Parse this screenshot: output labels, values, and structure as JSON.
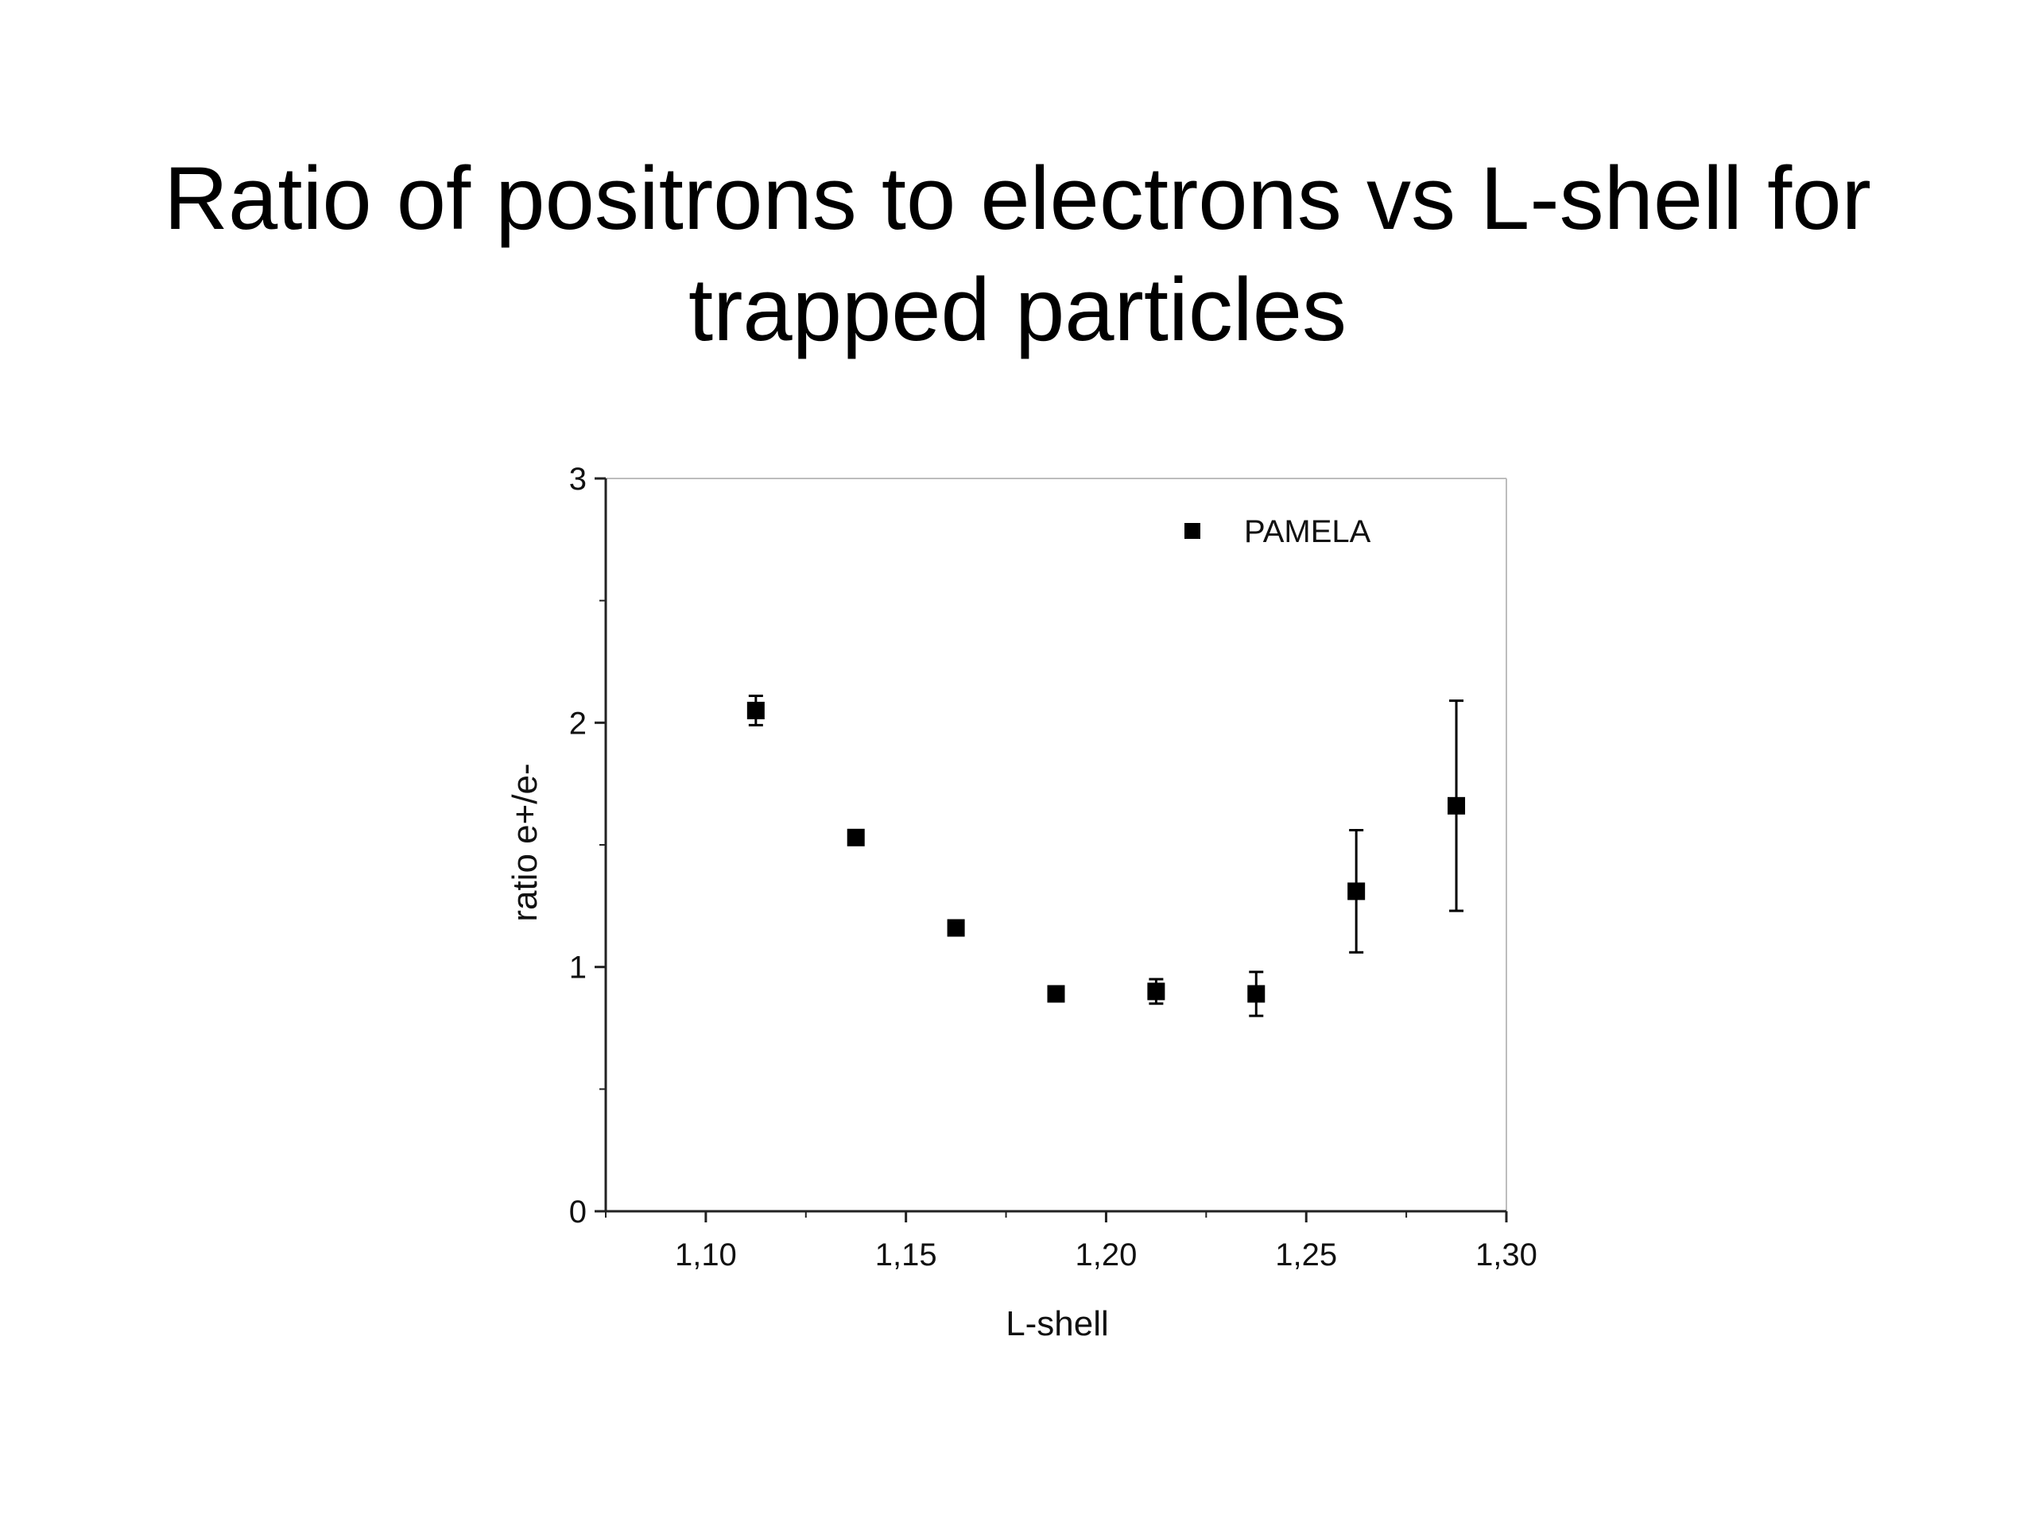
{
  "slide": {
    "title_line1": "Ratio of positrons to electrons vs L-shell for",
    "title_line2": "trapped particles"
  },
  "chart_data": {
    "type": "scatter",
    "xlabel": "L-shell",
    "ylabel": "ratio e+/e-",
    "xlim": [
      1.075,
      1.3
    ],
    "ylim": [
      0,
      3
    ],
    "x_ticks": [
      {
        "value": 1.1,
        "label": "1,10"
      },
      {
        "value": 1.15,
        "label": "1,15"
      },
      {
        "value": 1.2,
        "label": "1,20"
      },
      {
        "value": 1.25,
        "label": "1,25"
      },
      {
        "value": 1.3,
        "label": "1,30"
      }
    ],
    "x_minor_ticks": [
      1.125,
      1.175,
      1.225,
      1.275
    ],
    "y_ticks": [
      {
        "value": 0,
        "label": "0"
      },
      {
        "value": 1,
        "label": "1"
      },
      {
        "value": 2,
        "label": "2"
      },
      {
        "value": 3,
        "label": "3"
      }
    ],
    "y_minor_ticks": [
      0.5,
      1.5,
      2.5
    ],
    "grid": false,
    "legend": {
      "position": "top-right",
      "entries": [
        "PAMELA"
      ]
    },
    "marker": "square",
    "series": [
      {
        "name": "PAMELA",
        "color": "#000000",
        "points": [
          {
            "x": 1.1125,
            "y": 2.05,
            "err_low": 0.06,
            "err_high": 0.06
          },
          {
            "x": 1.1375,
            "y": 1.53,
            "err_low": 0.03,
            "err_high": 0.03
          },
          {
            "x": 1.1625,
            "y": 1.16,
            "err_low": 0.03,
            "err_high": 0.03
          },
          {
            "x": 1.1875,
            "y": 0.89,
            "err_low": 0.03,
            "err_high": 0.03
          },
          {
            "x": 1.2125,
            "y": 0.9,
            "err_low": 0.05,
            "err_high": 0.05
          },
          {
            "x": 1.2375,
            "y": 0.89,
            "err_low": 0.09,
            "err_high": 0.09
          },
          {
            "x": 1.2625,
            "y": 1.31,
            "err_low": 0.25,
            "err_high": 0.25
          },
          {
            "x": 1.2875,
            "y": 1.66,
            "err_low": 0.43,
            "err_high": 0.43
          }
        ]
      }
    ]
  }
}
